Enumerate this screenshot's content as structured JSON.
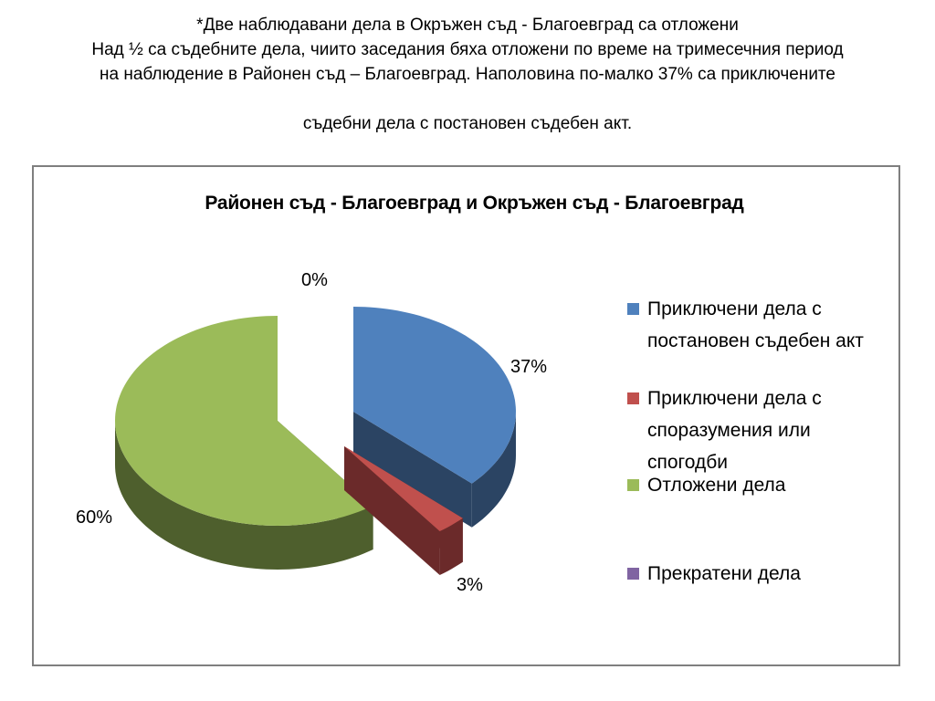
{
  "heading": {
    "line1": "*Две наблюдавани дела в Окръжен съд - Благоевград са отложени",
    "line2": "Над ½ са съдебните дела, чиито заседания бяха отложени по време на тримесечния период",
    "line3": "на наблюдение в Районен съд – Благоевград. Наполовина по-малко 37% са приключените",
    "line4": "съдебни дела с постановен съдебен акт."
  },
  "chart_data": {
    "type": "pie",
    "style": "3d-exploded",
    "title": "Районен съд - Благоевград и Окръжен съд - Благоевград",
    "legend_position": "right",
    "slices": [
      {
        "label": "Приключени дела с постановен съдебен акт",
        "value": 37,
        "display": "37%",
        "color": "#4f81bd",
        "side_color": "#2b4463"
      },
      {
        "label": "Приключени дела с споразумения или спогодби",
        "value": 3,
        "display": "3%",
        "color": "#c0504d",
        "side_color": "#6b2a2a"
      },
      {
        "label": "Отложени дела",
        "value": 60,
        "display": "60%",
        "color": "#9bbb59",
        "side_color": "#4e5f2d"
      },
      {
        "label": "Прекратени дела",
        "value": 0,
        "display": "0%",
        "color": "#8064a2",
        "side_color": "#4a3a5e"
      }
    ]
  }
}
